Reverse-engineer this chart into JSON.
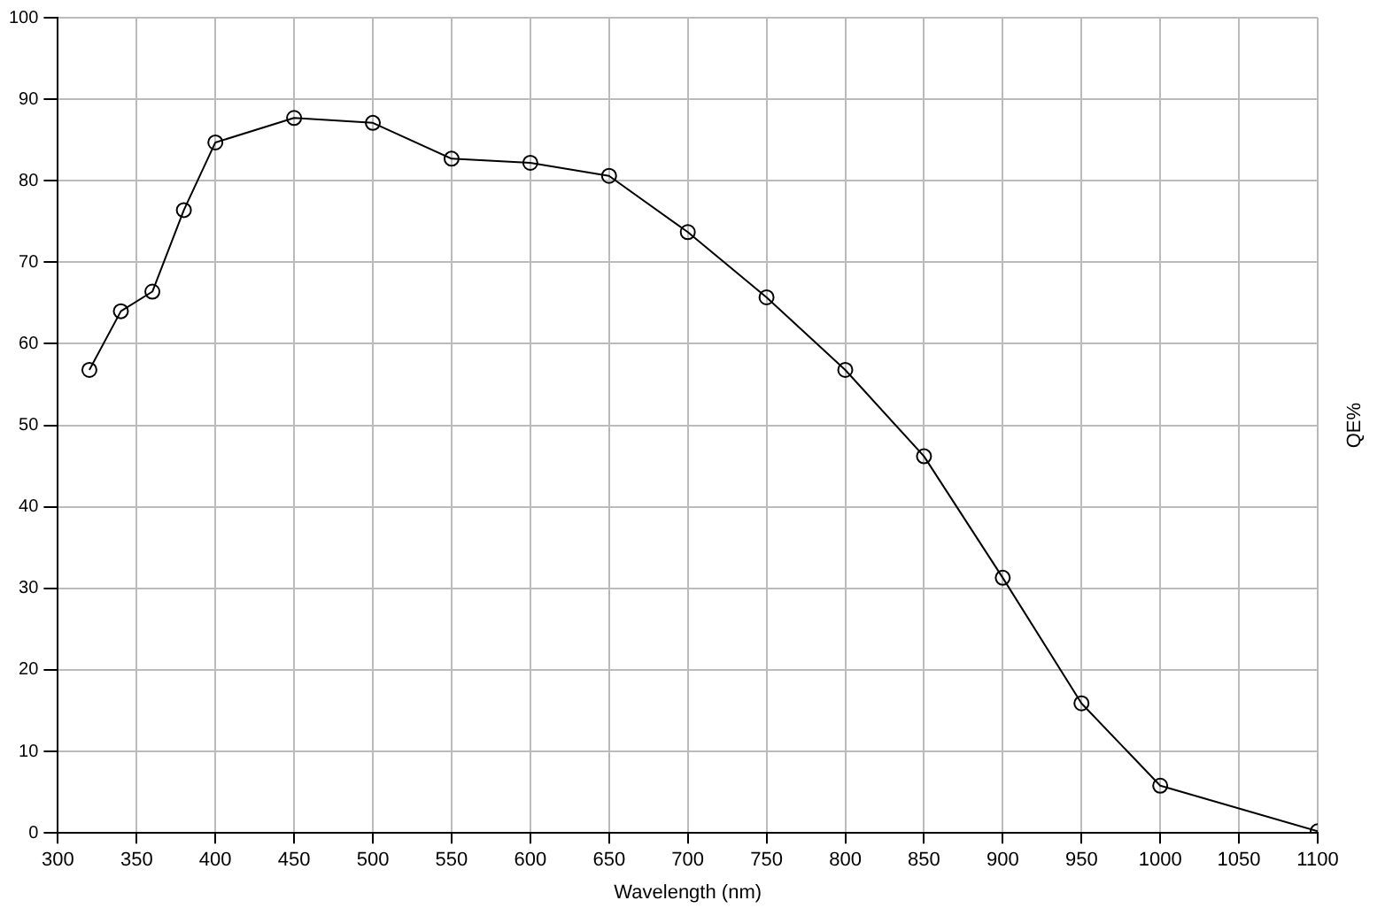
{
  "chart_data": {
    "type": "line",
    "xlabel": "Wavelength (nm)",
    "ylabel": "QE%",
    "x": [
      320,
      340,
      360,
      380,
      400,
      450,
      500,
      550,
      600,
      650,
      700,
      750,
      800,
      850,
      900,
      950,
      1000,
      1100
    ],
    "series": [
      {
        "color": "#000000",
        "values": [
          56.8,
          64.0,
          66.4,
          76.4,
          84.7,
          87.7,
          87.1,
          82.7,
          82.2,
          80.6,
          73.7,
          65.7,
          56.8,
          46.2,
          31.3,
          15.9,
          5.8,
          0.2
        ]
      }
    ],
    "xlim": [
      300,
      1100
    ],
    "xticks": [
      300,
      350,
      400,
      450,
      500,
      550,
      600,
      650,
      700,
      750,
      800,
      850,
      900,
      950,
      1000,
      1050,
      1100
    ],
    "ylim": [
      0,
      100
    ],
    "yticks": [
      0,
      10,
      20,
      30,
      40,
      50,
      60,
      70,
      80,
      90,
      100
    ],
    "grid": true,
    "legend": false,
    "marker": "circle",
    "line_style": "solid"
  }
}
